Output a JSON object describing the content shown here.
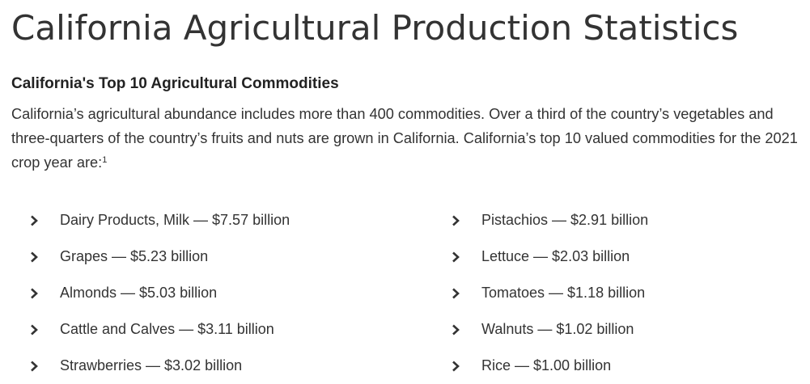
{
  "page": {
    "title": "California Agricultural Production Statistics"
  },
  "section": {
    "heading": "California's Top 10 Agricultural Commodities",
    "intro_text": "California’s agricultural abundance includes more than 400 commodities. Over a third of the country’s vegetables and three-quarters of the country’s fruits and nuts are grown in California. California’s top 10 valued commodities for the 2021 crop year are:",
    "footnote_marker": "1"
  },
  "commodities": {
    "icon": "chevron-right-icon",
    "left": [
      {
        "label": "Dairy Products, Milk — $7.57 billion"
      },
      {
        "label": "Grapes — $5.23 billion"
      },
      {
        "label": "Almonds — $5.03 billion"
      },
      {
        "label": "Cattle and Calves — $3.11 billion"
      },
      {
        "label": "Strawberries — $3.02 billion"
      }
    ],
    "right": [
      {
        "label": "Pistachios — $2.91 billion"
      },
      {
        "label": "Lettuce — $2.03 billion"
      },
      {
        "label": "Tomatoes — $1.18 billion"
      },
      {
        "label": "Walnuts — $1.02 billion"
      },
      {
        "label": "Rice — $1.00 billion"
      }
    ]
  },
  "colors": {
    "text": "#333333",
    "heading": "#222222",
    "background": "#ffffff"
  }
}
